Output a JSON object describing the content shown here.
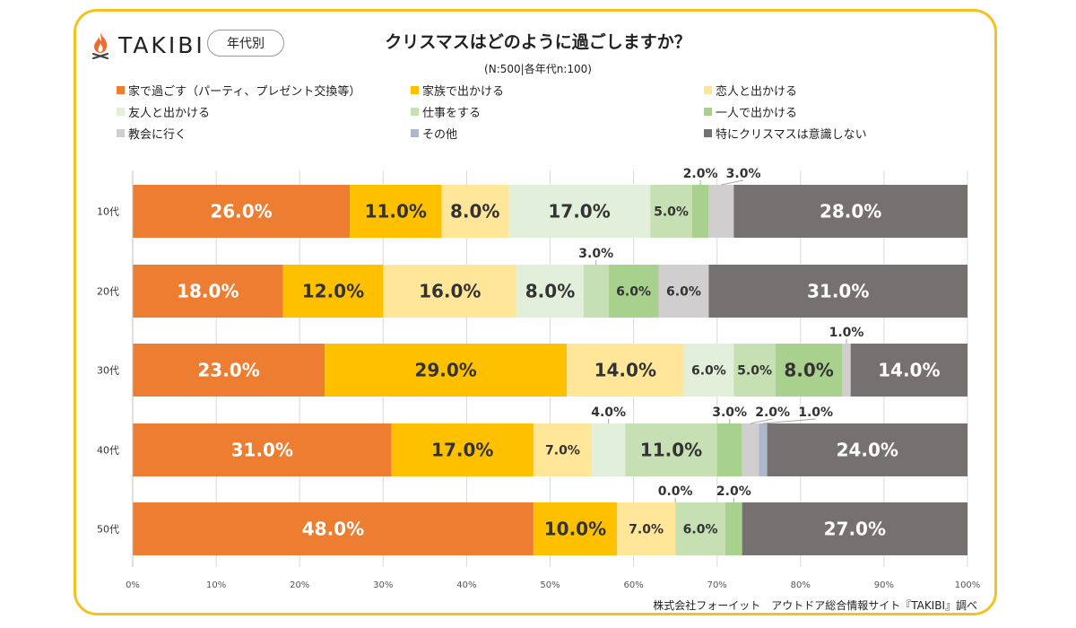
{
  "header": {
    "logo_text": "TAKIBI",
    "badge": "年代別",
    "title": "クリスマスはどのように過ごしますか？",
    "subtitle": "(N:500|各年代n:100)"
  },
  "footer": "株式会社フォーイット　アウトドア総合情報サイト『TAKIBI』調べ",
  "chart_data": {
    "type": "bar",
    "orientation": "horizontal",
    "stacked": true,
    "title": "クリスマスはどのように過ごしますか？",
    "xlabel": "",
    "ylabel": "",
    "xlim": [
      0,
      100
    ],
    "x_ticks": [
      "0%",
      "10%",
      "20%",
      "30%",
      "40%",
      "50%",
      "60%",
      "70%",
      "80%",
      "90%",
      "100%"
    ],
    "legend_position": "top",
    "grid": true,
    "categories": [
      "10代",
      "20代",
      "30代",
      "40代",
      "50代"
    ],
    "series": [
      {
        "name": "家で過ごす（パーティ、プレゼント交換等）",
        "color": "#ed7d31",
        "values": [
          26,
          18,
          23,
          31,
          48
        ],
        "labels": [
          "26.0%",
          "18.0%",
          "23.0%",
          "31.0%",
          "48.0%"
        ]
      },
      {
        "name": "家族で出かける",
        "color": "#ffc000",
        "values": [
          11,
          12,
          29,
          17,
          10
        ],
        "labels": [
          "11.0%",
          "12.0%",
          "29.0%",
          "17.0%",
          "10.0%"
        ]
      },
      {
        "name": "恋人と出かける",
        "color": "#ffe699",
        "values": [
          8,
          16,
          14,
          7,
          7
        ],
        "labels": [
          "8.0%",
          "16.0%",
          "14.0%",
          "7.0%",
          "7.0%"
        ]
      },
      {
        "name": "友人と出かける",
        "color": "#e2efda",
        "values": [
          17,
          8,
          6,
          4,
          0
        ],
        "labels": [
          "17.0%",
          "8.0%",
          "6.0%",
          "4.0%",
          "0.0%"
        ]
      },
      {
        "name": "仕事をする",
        "color": "#c6e0b4",
        "values": [
          5,
          3,
          5,
          11,
          6
        ],
        "labels": [
          "5.0%",
          "3.0%",
          "5.0%",
          "11.0%",
          "6.0%"
        ]
      },
      {
        "name": "一人で出かける",
        "color": "#a9d18e",
        "values": [
          2,
          6,
          8,
          3,
          2
        ],
        "labels": [
          "2.0%",
          "6.0%",
          "8.0%",
          "3.0%",
          "2.0%"
        ]
      },
      {
        "name": "教会に行く",
        "color": "#d0cece",
        "values": [
          3,
          6,
          1,
          2,
          0
        ],
        "labels": [
          "3.0%",
          "6.0%",
          "1.0%",
          "2.0%",
          ""
        ]
      },
      {
        "name": "その他",
        "color": "#adb9ca",
        "values": [
          0,
          0,
          0,
          1,
          0
        ],
        "labels": [
          "",
          "",
          "",
          "1.0%",
          ""
        ]
      },
      {
        "name": "特にクリスマスは意識しない",
        "color": "#767171",
        "values": [
          28,
          31,
          14,
          24,
          27
        ],
        "labels": [
          "28.0%",
          "31.0%",
          "14.0%",
          "24.0%",
          "27.0%"
        ]
      }
    ]
  }
}
